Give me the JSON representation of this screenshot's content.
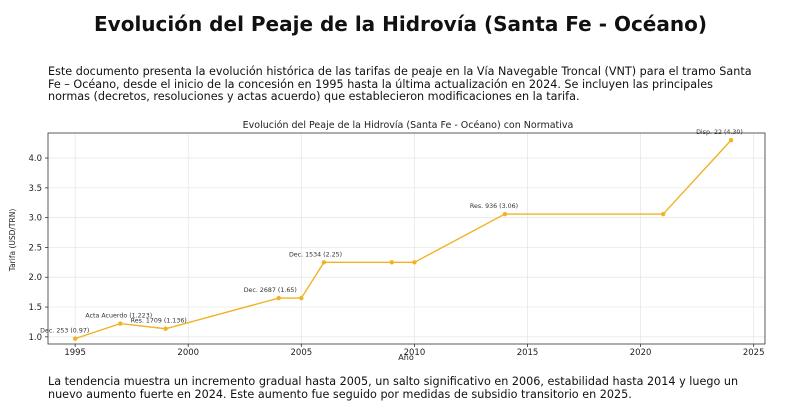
{
  "doc": {
    "title": "Evolución del Peaje de la Hidrovía (Santa Fe - Océano)",
    "intro": "Este documento presenta la evolución histórica de las tarifas de peaje en la Vía Navegable Troncal (VNT) para el tramo Santa Fe – Océano, desde el inicio de la concesión en 1995 hasta la última actualización en 2024. Se incluyen las principales normas (decretos, resoluciones y actas acuerdo) que establecieron modificaciones en la tarifa.",
    "outro": "La tendencia muestra un incremento gradual hasta 2005, un salto significativo en 2006, estabilidad hasta 2014 y luego un nuevo aumento fuerte en 2024. Este aumento fue seguido por medidas de subsidio transitorio en 2025."
  },
  "chart_data": {
    "type": "line",
    "title": "Evolución del Peaje de la Hidrovía (Santa Fe - Océano) con Normativa",
    "xlabel": "Año",
    "ylabel": "Tarifa (USD/TRN)",
    "xlim": [
      1993.8,
      2025.5
    ],
    "ylim": [
      0.88,
      4.42
    ],
    "xticks": [
      1995,
      2000,
      2005,
      2010,
      2015,
      2020,
      2025
    ],
    "yticks": [
      1.0,
      1.5,
      2.0,
      2.5,
      3.0,
      3.5,
      4.0
    ],
    "grid": true,
    "color": "#f0b323",
    "series": [
      {
        "x": [
          1995,
          1997,
          1999,
          2004,
          2005,
          2006,
          2009,
          2010,
          2014,
          2021,
          2024
        ],
        "y": [
          0.97,
          1.223,
          1.136,
          1.65,
          1.65,
          2.25,
          2.25,
          2.25,
          3.06,
          3.06,
          4.3
        ]
      }
    ],
    "annotations": [
      {
        "x": 1995,
        "y": 0.97,
        "text": "Dec. 253 (0.97)"
      },
      {
        "x": 1997,
        "y": 1.223,
        "text": "Acta Acuerdo (1.223)"
      },
      {
        "x": 1999,
        "y": 1.136,
        "text": "Res. 1709 (1.136)"
      },
      {
        "x": 2004,
        "y": 1.65,
        "text": "Dec. 2687 (1.65)"
      },
      {
        "x": 2006,
        "y": 2.25,
        "text": "Dec. 1534 (2.25)"
      },
      {
        "x": 2014,
        "y": 3.06,
        "text": "Res. 936 (3.06)"
      },
      {
        "x": 2024,
        "y": 4.3,
        "text": "Disp. 22 (4.30)"
      }
    ]
  }
}
